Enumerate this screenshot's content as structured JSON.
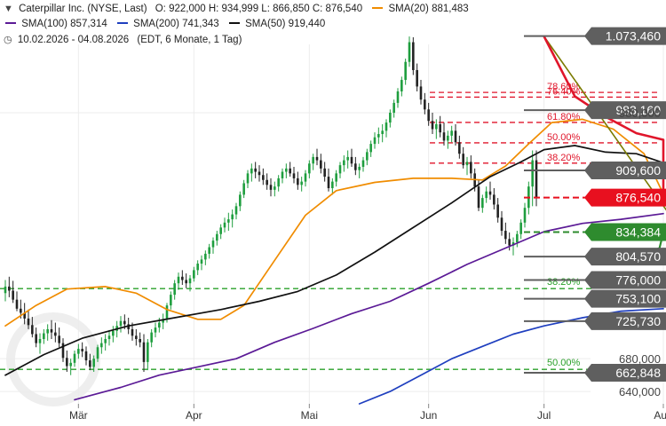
{
  "header": {
    "line1": {
      "symbol_text": "Caterpillar Inc. (NYSE, Last)",
      "ohlc_text": "O: 922,000  H: 934,999  L: 866,850  C: 876,540",
      "sma20_text": "SMA(20)  881,483"
    },
    "line2": {
      "sma100_text": "SMA(100)  857,314",
      "sma200_text": "SMA(200)  741,343",
      "sma50_text": "SMA(50)  919,440"
    },
    "line3": {
      "range_text": "10.02.2026 - 04.08.2026",
      "meta_text": "(EDT, 6 Monate, 1 Tag)"
    }
  },
  "colors": {
    "sma20": "#f08c00",
    "sma50": "#111111",
    "sma100": "#5b1a96",
    "sma200": "#1f3fbf",
    "fib": "#e0162b",
    "green_level": "#2aa02a",
    "trendline": "#7a7a00",
    "label_grey": "#5f5f5f",
    "label_red": "#e8101f",
    "label_green": "#2e8b2e",
    "candle_up": "#1e9e3e",
    "candle_down": "#222222",
    "red_line": "#e0162b",
    "green_short_line": "#2e8b2e"
  },
  "chart_data": {
    "type": "candlestick",
    "ylim": [
      625,
      1085
    ],
    "x_months": [
      {
        "label": "Mär",
        "day": 19
      },
      {
        "label": "Apr",
        "day": 49
      },
      {
        "label": "Mai",
        "day": 79
      },
      {
        "label": "Jun",
        "day": 110
      },
      {
        "label": "Jul",
        "day": 140
      },
      {
        "label": "Aug",
        "day": 171
      }
    ],
    "y_ticks": [
      {
        "value": 980,
        "label": "980,000"
      },
      {
        "value": 680,
        "label": "680,000"
      },
      {
        "value": 640,
        "label": "640,000"
      }
    ],
    "price_labels": [
      {
        "value": 1073.46,
        "label": "1.073,460",
        "kind": "grey"
      },
      {
        "value": 983.16,
        "label": "983,160",
        "kind": "grey"
      },
      {
        "value": 909.6,
        "label": "909,600",
        "kind": "grey"
      },
      {
        "value": 876.54,
        "label": "876,540",
        "kind": "red"
      },
      {
        "value": 834.384,
        "label": "834,384",
        "kind": "green"
      },
      {
        "value": 804.57,
        "label": "804,570",
        "kind": "grey"
      },
      {
        "value": 776.0,
        "label": "776,000",
        "kind": "grey"
      },
      {
        "value": 753.1,
        "label": "753,100",
        "kind": "grey"
      },
      {
        "value": 725.73,
        "label": "725,730",
        "kind": "grey"
      },
      {
        "value": 662.848,
        "label": "662,848",
        "kind": "grey"
      }
    ],
    "fib_levels": [
      {
        "label": "78.60%",
        "value": 1004.8
      },
      {
        "label": "76.40%",
        "value": 999.0
      },
      {
        "label": "61.80%",
        "value": 968.2
      },
      {
        "label": "50.00%",
        "value": 943.3
      },
      {
        "label": "38.20%",
        "value": 918.5
      }
    ],
    "green_levels": [
      {
        "label": "38.20%",
        "value": 765.5
      },
      {
        "label": "50.00%",
        "value": 667.0
      }
    ],
    "sma_series": [
      {
        "key": "sma20",
        "points": [
          [
            0,
            720
          ],
          [
            8,
            745
          ],
          [
            16,
            765
          ],
          [
            26,
            768
          ],
          [
            34,
            760
          ],
          [
            42,
            740
          ],
          [
            50,
            728
          ],
          [
            56,
            728
          ],
          [
            62,
            745
          ],
          [
            70,
            800
          ],
          [
            78,
            855
          ],
          [
            86,
            885
          ],
          [
            96,
            895
          ],
          [
            106,
            900
          ],
          [
            116,
            900
          ],
          [
            124,
            898
          ],
          [
            130,
            915
          ],
          [
            136,
            942
          ],
          [
            142,
            968
          ],
          [
            150,
            972
          ],
          [
            158,
            960
          ],
          [
            166,
            930
          ],
          [
            171,
            881
          ]
        ]
      },
      {
        "key": "sma50",
        "points": [
          [
            0,
            660
          ],
          [
            10,
            685
          ],
          [
            20,
            705
          ],
          [
            32,
            720
          ],
          [
            44,
            730
          ],
          [
            56,
            740
          ],
          [
            66,
            750
          ],
          [
            76,
            762
          ],
          [
            86,
            782
          ],
          [
            96,
            810
          ],
          [
            106,
            840
          ],
          [
            116,
            870
          ],
          [
            126,
            902
          ],
          [
            134,
            920
          ],
          [
            140,
            935
          ],
          [
            148,
            940
          ],
          [
            156,
            932
          ],
          [
            164,
            930
          ],
          [
            171,
            919
          ]
        ]
      },
      {
        "key": "sma100",
        "points": [
          [
            18,
            630
          ],
          [
            30,
            645
          ],
          [
            40,
            660
          ],
          [
            50,
            670
          ],
          [
            60,
            680
          ],
          [
            70,
            700
          ],
          [
            80,
            717
          ],
          [
            90,
            735
          ],
          [
            100,
            750
          ],
          [
            110,
            772
          ],
          [
            120,
            795
          ],
          [
            130,
            815
          ],
          [
            140,
            835
          ],
          [
            150,
            845
          ],
          [
            160,
            850
          ],
          [
            171,
            857
          ]
        ]
      },
      {
        "key": "sma200",
        "points": [
          [
            92,
            625
          ],
          [
            100,
            640
          ],
          [
            108,
            660
          ],
          [
            116,
            680
          ],
          [
            124,
            695
          ],
          [
            132,
            710
          ],
          [
            140,
            720
          ],
          [
            150,
            730
          ],
          [
            160,
            738
          ],
          [
            171,
            741
          ]
        ]
      }
    ],
    "trendline": {
      "points": [
        [
          140,
          1073
        ],
        [
          205,
          640
        ]
      ]
    },
    "red_line": {
      "points": [
        [
          140,
          1073
        ],
        [
          148,
          1000
        ],
        [
          156,
          975
        ],
        [
          164,
          955
        ],
        [
          171,
          947
        ],
        [
          171,
          878
        ]
      ]
    },
    "green_short_line": {
      "points": [
        [
          165,
          805
        ],
        [
          170,
          815
        ],
        [
          171,
          834
        ]
      ]
    },
    "candles": [
      [
        760,
        776,
        750,
        768
      ],
      [
        768,
        780,
        755,
        763
      ],
      [
        763,
        775,
        748,
        752
      ],
      [
        752,
        762,
        738,
        741
      ],
      [
        741,
        752,
        729,
        736
      ],
      [
        736,
        748,
        722,
        729
      ],
      [
        729,
        740,
        716,
        721
      ],
      [
        721,
        731,
        706,
        710
      ],
      [
        710,
        718,
        694,
        699
      ],
      [
        699,
        711,
        686,
        704
      ],
      [
        704,
        716,
        698,
        711
      ],
      [
        711,
        722,
        702,
        716
      ],
      [
        716,
        727,
        704,
        712
      ],
      [
        712,
        724,
        700,
        708
      ],
      [
        708,
        718,
        694,
        699
      ],
      [
        699,
        705,
        676,
        681
      ],
      [
        681,
        690,
        664,
        671
      ],
      [
        671,
        680,
        660,
        675
      ],
      [
        675,
        690,
        670,
        686
      ],
      [
        686,
        698,
        680,
        692
      ],
      [
        692,
        700,
        682,
        689
      ],
      [
        689,
        695,
        672,
        678
      ],
      [
        678,
        686,
        666,
        670
      ],
      [
        670,
        684,
        664,
        680
      ],
      [
        680,
        697,
        676,
        694
      ],
      [
        694,
        706,
        686,
        699
      ],
      [
        699,
        710,
        690,
        704
      ],
      [
        704,
        715,
        696,
        708
      ],
      [
        708,
        720,
        700,
        714
      ],
      [
        714,
        726,
        706,
        720
      ],
      [
        720,
        732,
        712,
        726
      ],
      [
        726,
        734,
        716,
        722
      ],
      [
        722,
        730,
        710,
        716
      ],
      [
        716,
        724,
        702,
        708
      ],
      [
        708,
        716,
        696,
        704
      ],
      [
        704,
        712,
        694,
        700
      ],
      [
        700,
        710,
        664,
        676
      ],
      [
        676,
        704,
        666,
        700
      ],
      [
        700,
        716,
        694,
        712
      ],
      [
        712,
        724,
        706,
        718
      ],
      [
        718,
        730,
        712,
        724
      ],
      [
        724,
        735,
        716,
        728
      ],
      [
        728,
        748,
        724,
        745
      ],
      [
        745,
        762,
        740,
        758
      ],
      [
        758,
        776,
        752,
        772
      ],
      [
        772,
        785,
        764,
        780
      ],
      [
        780,
        788,
        770,
        776
      ],
      [
        776,
        784,
        766,
        772
      ],
      [
        772,
        782,
        762,
        778
      ],
      [
        778,
        792,
        774,
        788
      ],
      [
        788,
        800,
        782,
        796
      ],
      [
        796,
        806,
        788,
        801
      ],
      [
        801,
        812,
        794,
        808
      ],
      [
        808,
        820,
        802,
        816
      ],
      [
        816,
        828,
        808,
        824
      ],
      [
        824,
        836,
        818,
        832
      ],
      [
        832,
        844,
        826,
        840
      ],
      [
        840,
        852,
        834,
        846
      ],
      [
        846,
        858,
        836,
        850
      ],
      [
        850,
        862,
        840,
        856
      ],
      [
        856,
        870,
        850,
        866
      ],
      [
        866,
        884,
        860,
        880
      ],
      [
        880,
        898,
        876,
        894
      ],
      [
        894,
        910,
        888,
        906
      ],
      [
        906,
        918,
        896,
        912
      ],
      [
        912,
        920,
        900,
        908
      ],
      [
        908,
        916,
        896,
        904
      ],
      [
        904,
        912,
        892,
        898
      ],
      [
        898,
        906,
        886,
        892
      ],
      [
        892,
        900,
        878,
        886
      ],
      [
        886,
        896,
        878,
        890
      ],
      [
        890,
        904,
        884,
        900
      ],
      [
        900,
        912,
        894,
        908
      ],
      [
        908,
        918,
        900,
        912
      ],
      [
        912,
        920,
        902,
        906
      ],
      [
        906,
        914,
        894,
        900
      ],
      [
        900,
        908,
        886,
        892
      ],
      [
        892,
        902,
        884,
        896
      ],
      [
        896,
        910,
        890,
        906
      ],
      [
        906,
        922,
        900,
        918
      ],
      [
        918,
        930,
        910,
        926
      ],
      [
        926,
        936,
        916,
        922
      ],
      [
        922,
        930,
        906,
        912
      ],
      [
        912,
        920,
        896,
        902
      ],
      [
        902,
        912,
        884,
        888
      ],
      [
        888,
        900,
        880,
        896
      ],
      [
        896,
        910,
        890,
        906
      ],
      [
        906,
        920,
        900,
        916
      ],
      [
        916,
        928,
        908,
        922
      ],
      [
        922,
        934,
        912,
        926
      ],
      [
        926,
        936,
        914,
        918
      ],
      [
        918,
        926,
        904,
        910
      ],
      [
        910,
        918,
        900,
        914
      ],
      [
        914,
        926,
        908,
        922
      ],
      [
        922,
        936,
        916,
        932
      ],
      [
        932,
        946,
        926,
        942
      ],
      [
        942,
        956,
        936,
        950
      ],
      [
        950,
        962,
        942,
        954
      ],
      [
        954,
        966,
        944,
        958
      ],
      [
        958,
        972,
        950,
        968
      ],
      [
        968,
        984,
        962,
        980
      ],
      [
        980,
        996,
        974,
        992
      ],
      [
        992,
        1010,
        986,
        1006
      ],
      [
        1006,
        1024,
        1000,
        1020
      ],
      [
        1020,
        1046,
        1014,
        1042
      ],
      [
        1042,
        1073,
        1036,
        1066
      ],
      [
        1066,
        1072,
        1026,
        1032
      ],
      [
        1032,
        1040,
        1006,
        1012
      ],
      [
        1012,
        1020,
        990,
        996
      ],
      [
        996,
        1004,
        978,
        984
      ],
      [
        984,
        992,
        964,
        970
      ],
      [
        970,
        980,
        954,
        960
      ],
      [
        960,
        972,
        948,
        966
      ],
      [
        966,
        976,
        950,
        956
      ],
      [
        956,
        968,
        940,
        946
      ],
      [
        946,
        958,
        936,
        952
      ],
      [
        952,
        964,
        944,
        958
      ],
      [
        958,
        966,
        940,
        944
      ],
      [
        944,
        952,
        924,
        930
      ],
      [
        930,
        938,
        912,
        916
      ],
      [
        916,
        926,
        904,
        920
      ],
      [
        920,
        928,
        900,
        906
      ],
      [
        906,
        912,
        884,
        890
      ],
      [
        890,
        898,
        860,
        864
      ],
      [
        864,
        880,
        858,
        876
      ],
      [
        876,
        890,
        870,
        884
      ],
      [
        884,
        896,
        874,
        880
      ],
      [
        880,
        888,
        862,
        868
      ],
      [
        868,
        876,
        846,
        852
      ],
      [
        852,
        860,
        830,
        836
      ],
      [
        836,
        846,
        820,
        826
      ],
      [
        826,
        834,
        812,
        818
      ],
      [
        818,
        828,
        806,
        822
      ],
      [
        822,
        836,
        816,
        832
      ],
      [
        832,
        850,
        826,
        846
      ],
      [
        846,
        870,
        840,
        864
      ],
      [
        864,
        896,
        856,
        890
      ],
      [
        890,
        934,
        866,
        922
      ],
      [
        922,
        934,
        866,
        876
      ]
    ]
  }
}
